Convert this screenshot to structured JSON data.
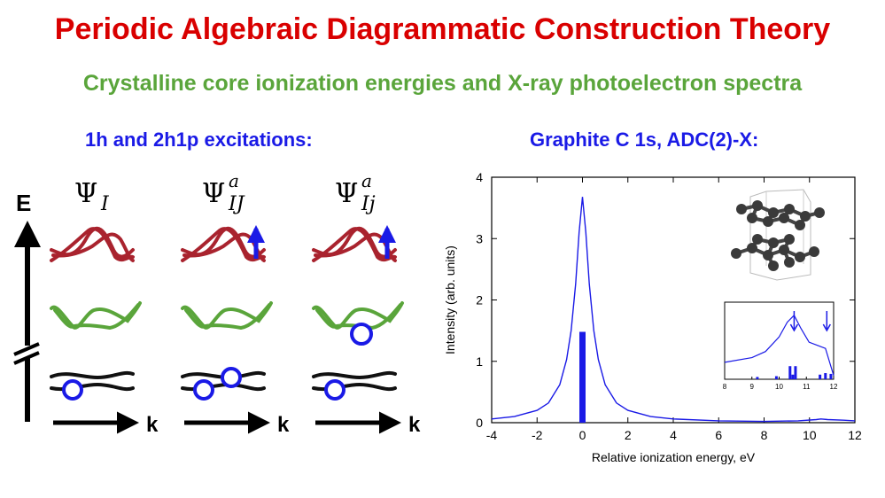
{
  "title": "Periodic Algebraic Diagrammatic Construction Theory",
  "subtitle": "Crystalline core ionization energies and X-ray photoelectron spectra",
  "left_panel": {
    "heading": "1h and 2h1p excitations:",
    "energy_axis_label": "E",
    "k_label": "k",
    "wavefunctions": [
      {
        "base": "Ψ",
        "sup": "",
        "sub": "I"
      },
      {
        "base": "Ψ",
        "sup": "a",
        "sub": "IJ"
      },
      {
        "base": "Ψ",
        "sup": "a",
        "sub": "Ij"
      }
    ],
    "colors": {
      "top_band": "#a9232e",
      "middle_band": "#5aa53b",
      "core_band": "#111111",
      "electron": "#1a1ae6"
    }
  },
  "right_panel": {
    "heading": "Graphite C 1s, ADC(2)-X:"
  },
  "chart_data": [
    {
      "type": "line",
      "title": "",
      "xlabel": "Relative ionization energy, eV",
      "ylabel": "Intensity (arb. units)",
      "xlim": [
        -4,
        12
      ],
      "ylim": [
        0,
        4
      ],
      "xticks": [
        "-4",
        "-2",
        "0",
        "2",
        "4",
        "6",
        "8",
        "10",
        "12"
      ],
      "yticks": [
        "0",
        "1",
        "2",
        "3",
        "4"
      ],
      "series": [
        {
          "kind": "line",
          "color": "#1a1ae6",
          "x": [
            -4,
            -3,
            -2,
            -1.5,
            -1,
            -0.7,
            -0.5,
            -0.3,
            -0.15,
            0,
            0.15,
            0.3,
            0.5,
            0.7,
            1,
            1.5,
            2,
            3,
            4,
            6,
            8,
            9.5,
            10.3,
            10.5,
            10.8,
            11.5,
            12
          ],
          "y": [
            0.06,
            0.1,
            0.2,
            0.32,
            0.62,
            1.03,
            1.5,
            2.26,
            3.1,
            3.68,
            3.1,
            2.26,
            1.5,
            1.03,
            0.62,
            0.32,
            0.2,
            0.1,
            0.06,
            0.03,
            0.02,
            0.03,
            0.05,
            0.06,
            0.05,
            0.04,
            0.03
          ]
        },
        {
          "kind": "stick",
          "color": "#1a1ae6",
          "x": [
            0
          ],
          "y": [
            1.48
          ]
        }
      ],
      "grid": false
    },
    {
      "type": "line",
      "title": "",
      "xlim": [
        8,
        12
      ],
      "xticks": [
        "8",
        "9",
        "10",
        "11",
        "12"
      ],
      "series": [
        {
          "kind": "line",
          "color": "#1a1ae6",
          "x": [
            8,
            9,
            9.5,
            10,
            10.3,
            10.55,
            10.8,
            11.1,
            11.4,
            11.7,
            12
          ],
          "y": [
            0.22,
            0.28,
            0.36,
            0.55,
            0.74,
            0.83,
            0.66,
            0.48,
            0.44,
            0.4,
            0.05
          ]
        },
        {
          "kind": "stick",
          "color": "#1a1ae6",
          "x": [
            9.2,
            9.9,
            10.4,
            10.5,
            10.6,
            11.5,
            11.7,
            11.9
          ],
          "y": [
            0.03,
            0.04,
            0.17,
            0.06,
            0.17,
            0.06,
            0.08,
            0.07
          ]
        }
      ],
      "arrows_at_x": [
        10.55,
        11.75
      ]
    }
  ]
}
